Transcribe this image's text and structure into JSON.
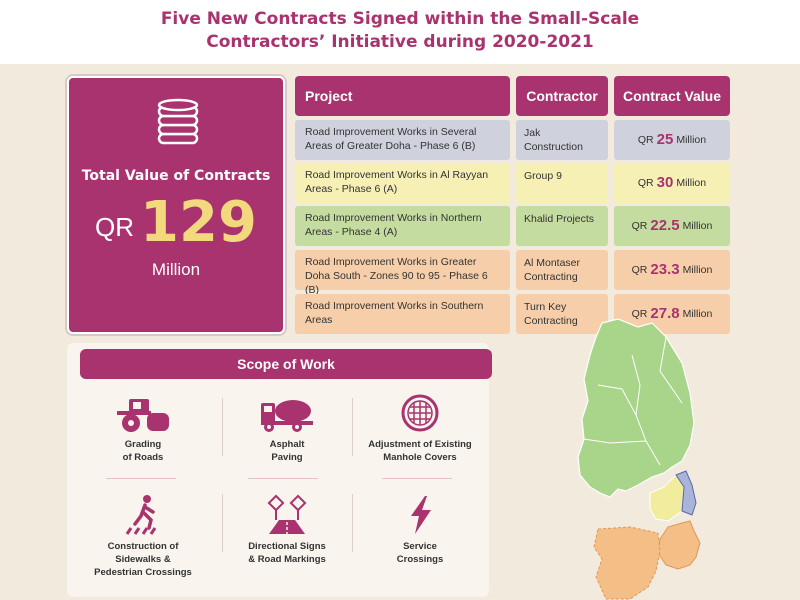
{
  "title": {
    "line1": "Five New Contracts Signed within the Small-Scale",
    "line2": "Contractors’ Initiative during 2020-2021"
  },
  "total": {
    "label": "Total Value of Contracts",
    "currency": "QR",
    "value": "129",
    "unit": "Million",
    "icon": "coins-icon"
  },
  "table": {
    "headers": {
      "project": "Project",
      "contractor": "Contractor",
      "value": "Contract Value"
    },
    "rows": [
      {
        "project": "Road Improvement Works in Several Areas of Greater Doha - Phase 6 (B)",
        "contractor": "Jak Construction",
        "currency": "QR",
        "amount": "25",
        "unit": "Million",
        "color": "#cfd1dd"
      },
      {
        "project": "Road Improvement Works in Al Rayyan Areas - Phase 6 (A)",
        "contractor": "Group 9",
        "currency": "QR",
        "amount": "30",
        "unit": "Million",
        "color": "#f7f0b5"
      },
      {
        "project": "Road Improvement Works in Northern Areas - Phase 4 (A)",
        "contractor": "Khalid Projects",
        "currency": "QR",
        "amount": "22.5",
        "unit": "Million",
        "color": "#c5dca0"
      },
      {
        "project": "Road Improvement Works in Greater Doha South - Zones 90 to 95 - Phase 6 (B)",
        "contractor": "Al Montaser Contracting",
        "currency": "QR",
        "amount": "23.3",
        "unit": "Million",
        "color": "#f6cfaa"
      },
      {
        "project": "Road Improvement Works in Southern Areas",
        "contractor": "Turn Key Contracting",
        "currency": "QR",
        "amount": "27.8",
        "unit": "Million",
        "color": "#f6cfaa"
      }
    ]
  },
  "scope": {
    "title": "Scope of Work",
    "items": [
      {
        "label1": "Grading",
        "label2": "of Roads",
        "label3": "",
        "icon": "road-roller-icon"
      },
      {
        "label1": "Asphalt",
        "label2": "Paving",
        "label3": "",
        "icon": "mixer-truck-icon"
      },
      {
        "label1": "Adjustment of Existing",
        "label2": "Manhole Covers",
        "label3": "",
        "icon": "manhole-cover-icon"
      },
      {
        "label1": "Construction of",
        "label2": "Sidewalks &",
        "label3": "Pedestrian Crossings",
        "icon": "pedestrian-crossing-icon"
      },
      {
        "label1": "Directional Signs",
        "label2": "& Road Markings",
        "label3": "",
        "icon": "road-signs-icon"
      },
      {
        "label1": "Service",
        "label2": "Crossings",
        "label3": "",
        "icon": "lightning-icon"
      }
    ]
  },
  "colors": {
    "brand": "#a8336e",
    "accent": "#f2d97e",
    "background": "#f3eade"
  },
  "map": {
    "icon": "qatar-map-icon"
  }
}
